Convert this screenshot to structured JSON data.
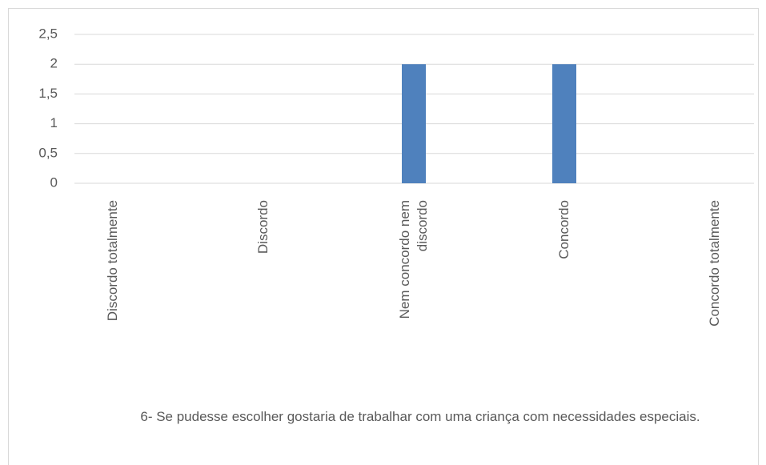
{
  "chart_data": {
    "type": "bar",
    "categories": [
      "Discordo totalmente",
      "Discordo",
      "Nem concordo nem discordo",
      "Concordo",
      "Concordo totalmente"
    ],
    "values": [
      0,
      0,
      2,
      2,
      0
    ],
    "color": "#4f81bd",
    "ylim": [
      0,
      2.5
    ],
    "yticks": [
      0,
      {
        "value": 0.5,
        "label": "0,5"
      },
      1,
      {
        "value": 1.5,
        "label": "1,5"
      },
      2,
      {
        "value": 2.5,
        "label": "2,5"
      }
    ],
    "grid": true,
    "x_label": "6- Se pudesse escolher gostaria de trabalhar com uma criança com necessidades especiais."
  }
}
